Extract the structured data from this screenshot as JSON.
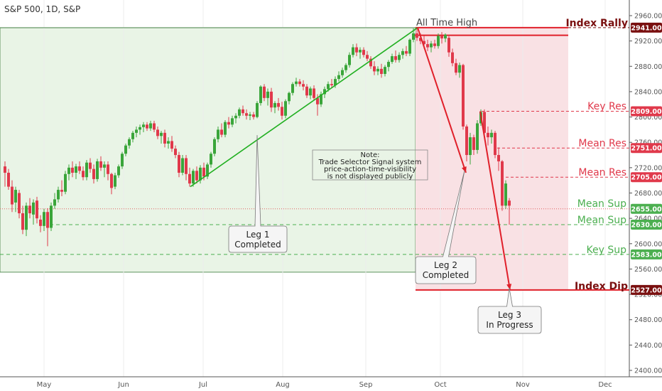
{
  "header": {
    "symbol_line": "S&P 500, 1D, S&P"
  },
  "colors": {
    "up": "#3aa53a",
    "down": "#e0394b",
    "green_line": "#22b022",
    "red_line": "#e0202a",
    "support_text": "#4caf50",
    "resistance_text": "#e0394b",
    "dark_label": "#7a1010",
    "green_zone": "#e9f4e6",
    "red_zone": "#f9e1e4"
  },
  "chart_data": {
    "type": "candlestick",
    "x_axis": {
      "months": [
        "May",
        "Jun",
        "Jul",
        "Aug",
        "Sep",
        "Oct",
        "Nov",
        "Dec"
      ]
    },
    "y_axis": {
      "ylim": [
        2385,
        2975
      ],
      "ticks": [
        2400,
        2440,
        2480,
        2520,
        2560,
        2600,
        2640,
        2680,
        2720,
        2760,
        2800,
        2840,
        2880,
        2920,
        2960
      ],
      "tick_labels": [
        "2400.00",
        "2440.00",
        "2480.00",
        "2520.00",
        "2560.00",
        "2600.00",
        "2640.00",
        "2680.00",
        "2720.00",
        "2760.00",
        "2800.00",
        "2840.00",
        "2880.00",
        "2920.00",
        "2960.00"
      ]
    },
    "levels": [
      {
        "label": "Index Rally",
        "value": 2941,
        "price_label": "2941.00",
        "kind": "dark"
      },
      {
        "label": "Key Res",
        "value": 2809,
        "price_label": "2809.00",
        "kind": "res"
      },
      {
        "label": "Mean Res",
        "value": 2751,
        "price_label": "2751.00",
        "kind": "res"
      },
      {
        "label": "Mean Res",
        "value": 2705,
        "price_label": "2705.00",
        "kind": "res"
      },
      {
        "label": "Mean Sup",
        "value": 2655,
        "price_label": "2655.00",
        "kind": "sup"
      },
      {
        "label": "Mean Sup",
        "value": 2630,
        "price_label": "2630.00",
        "kind": "sup"
      },
      {
        "label": "Key Sup",
        "value": 2583,
        "price_label": "2583.00",
        "kind": "sup"
      },
      {
        "label": "Index Dip",
        "value": 2527,
        "price_label": "2527.00",
        "kind": "dark"
      }
    ],
    "annotations": {
      "all_time_high": "All Time High",
      "note_lines": [
        "Note:",
        "Trade Selector Signal system",
        "price-action-time-visibility",
        "is not displayed publicly"
      ],
      "leg1": [
        "Leg 1",
        "Completed"
      ],
      "leg2": [
        "Leg 2",
        "Completed"
      ],
      "leg3": [
        "Leg 3",
        "In Progress"
      ]
    },
    "candles": [
      {
        "x": 7,
        "o": 2722,
        "h": 2730,
        "l": 2690,
        "c": 2712
      },
      {
        "x": 12,
        "o": 2712,
        "h": 2718,
        "l": 2685,
        "c": 2690
      },
      {
        "x": 17,
        "o": 2690,
        "h": 2700,
        "l": 2650,
        "c": 2662
      },
      {
        "x": 22,
        "o": 2665,
        "h": 2690,
        "l": 2650,
        "c": 2685
      },
      {
        "x": 27,
        "o": 2680,
        "h": 2685,
        "l": 2640,
        "c": 2648
      },
      {
        "x": 32,
        "o": 2648,
        "h": 2660,
        "l": 2615,
        "c": 2622
      },
      {
        "x": 37,
        "o": 2622,
        "h": 2665,
        "l": 2612,
        "c": 2660
      },
      {
        "x": 42,
        "o": 2660,
        "h": 2672,
        "l": 2640,
        "c": 2648
      },
      {
        "x": 47,
        "o": 2646,
        "h": 2670,
        "l": 2630,
        "c": 2665
      },
      {
        "x": 52,
        "o": 2668,
        "h": 2674,
        "l": 2632,
        "c": 2640
      },
      {
        "x": 57,
        "o": 2638,
        "h": 2645,
        "l": 2618,
        "c": 2628
      },
      {
        "x": 62,
        "o": 2628,
        "h": 2655,
        "l": 2620,
        "c": 2650
      },
      {
        "x": 67,
        "o": 2650,
        "h": 2656,
        "l": 2596,
        "c": 2625
      },
      {
        "x": 72,
        "o": 2625,
        "h": 2665,
        "l": 2620,
        "c": 2660
      },
      {
        "x": 77,
        "o": 2660,
        "h": 2680,
        "l": 2655,
        "c": 2670
      },
      {
        "x": 82,
        "o": 2670,
        "h": 2690,
        "l": 2665,
        "c": 2685
      },
      {
        "x": 87,
        "o": 2685,
        "h": 2700,
        "l": 2675,
        "c": 2682
      },
      {
        "x": 92,
        "o": 2682,
        "h": 2715,
        "l": 2678,
        "c": 2710
      },
      {
        "x": 97,
        "o": 2710,
        "h": 2725,
        "l": 2700,
        "c": 2720
      },
      {
        "x": 102,
        "o": 2720,
        "h": 2730,
        "l": 2705,
        "c": 2712
      },
      {
        "x": 107,
        "o": 2712,
        "h": 2726,
        "l": 2702,
        "c": 2722
      },
      {
        "x": 112,
        "o": 2722,
        "h": 2730,
        "l": 2710,
        "c": 2715
      },
      {
        "x": 117,
        "o": 2715,
        "h": 2722,
        "l": 2700,
        "c": 2705
      },
      {
        "x": 122,
        "o": 2705,
        "h": 2732,
        "l": 2700,
        "c": 2728
      },
      {
        "x": 127,
        "o": 2728,
        "h": 2735,
        "l": 2712,
        "c": 2718
      },
      {
        "x": 132,
        "o": 2718,
        "h": 2725,
        "l": 2695,
        "c": 2702
      },
      {
        "x": 137,
        "o": 2702,
        "h": 2734,
        "l": 2698,
        "c": 2730
      },
      {
        "x": 142,
        "o": 2730,
        "h": 2738,
        "l": 2715,
        "c": 2720
      },
      {
        "x": 147,
        "o": 2720,
        "h": 2730,
        "l": 2705,
        "c": 2725
      },
      {
        "x": 152,
        "o": 2725,
        "h": 2730,
        "l": 2700,
        "c": 2710
      },
      {
        "x": 157,
        "o": 2710,
        "h": 2712,
        "l": 2678,
        "c": 2688
      },
      {
        "x": 162,
        "o": 2690,
        "h": 2712,
        "l": 2686,
        "c": 2708
      },
      {
        "x": 167,
        "o": 2708,
        "h": 2725,
        "l": 2704,
        "c": 2722
      },
      {
        "x": 172,
        "o": 2722,
        "h": 2745,
        "l": 2718,
        "c": 2742
      },
      {
        "x": 177,
        "o": 2742,
        "h": 2758,
        "l": 2738,
        "c": 2755
      },
      {
        "x": 182,
        "o": 2755,
        "h": 2768,
        "l": 2750,
        "c": 2765
      },
      {
        "x": 187,
        "o": 2765,
        "h": 2778,
        "l": 2760,
        "c": 2775
      },
      {
        "x": 192,
        "o": 2775,
        "h": 2785,
        "l": 2768,
        "c": 2780
      },
      {
        "x": 197,
        "o": 2780,
        "h": 2788,
        "l": 2772,
        "c": 2784
      },
      {
        "x": 202,
        "o": 2784,
        "h": 2792,
        "l": 2776,
        "c": 2788
      },
      {
        "x": 207,
        "o": 2788,
        "h": 2792,
        "l": 2778,
        "c": 2782
      },
      {
        "x": 212,
        "o": 2782,
        "h": 2794,
        "l": 2778,
        "c": 2790
      },
      {
        "x": 217,
        "o": 2790,
        "h": 2794,
        "l": 2776,
        "c": 2780
      },
      {
        "x": 222,
        "o": 2780,
        "h": 2785,
        "l": 2765,
        "c": 2770
      },
      {
        "x": 227,
        "o": 2770,
        "h": 2778,
        "l": 2758,
        "c": 2775
      },
      {
        "x": 232,
        "o": 2775,
        "h": 2780,
        "l": 2752,
        "c": 2758
      },
      {
        "x": 237,
        "o": 2758,
        "h": 2768,
        "l": 2750,
        "c": 2762
      },
      {
        "x": 242,
        "o": 2762,
        "h": 2770,
        "l": 2745,
        "c": 2750
      },
      {
        "x": 247,
        "o": 2750,
        "h": 2755,
        "l": 2735,
        "c": 2740
      },
      {
        "x": 252,
        "o": 2740,
        "h": 2745,
        "l": 2705,
        "c": 2712
      },
      {
        "x": 257,
        "o": 2712,
        "h": 2740,
        "l": 2708,
        "c": 2735
      },
      {
        "x": 262,
        "o": 2735,
        "h": 2740,
        "l": 2700,
        "c": 2710
      },
      {
        "x": 267,
        "o": 2710,
        "h": 2720,
        "l": 2690,
        "c": 2695
      },
      {
        "x": 272,
        "o": 2695,
        "h": 2718,
        "l": 2690,
        "c": 2715
      },
      {
        "x": 277,
        "o": 2715,
        "h": 2722,
        "l": 2695,
        "c": 2700
      },
      {
        "x": 282,
        "o": 2700,
        "h": 2724,
        "l": 2695,
        "c": 2720
      },
      {
        "x": 287,
        "o": 2720,
        "h": 2728,
        "l": 2700,
        "c": 2706
      },
      {
        "x": 292,
        "o": 2706,
        "h": 2728,
        "l": 2702,
        "c": 2725
      },
      {
        "x": 297,
        "o": 2725,
        "h": 2745,
        "l": 2720,
        "c": 2742
      },
      {
        "x": 302,
        "o": 2742,
        "h": 2768,
        "l": 2738,
        "c": 2765
      },
      {
        "x": 307,
        "o": 2765,
        "h": 2785,
        "l": 2760,
        "c": 2780
      },
      {
        "x": 312,
        "o": 2780,
        "h": 2790,
        "l": 2768,
        "c": 2772
      },
      {
        "x": 317,
        "o": 2772,
        "h": 2795,
        "l": 2768,
        "c": 2792
      },
      {
        "x": 322,
        "o": 2792,
        "h": 2800,
        "l": 2782,
        "c": 2788
      },
      {
        "x": 327,
        "o": 2788,
        "h": 2802,
        "l": 2784,
        "c": 2798
      },
      {
        "x": 332,
        "o": 2798,
        "h": 2806,
        "l": 2790,
        "c": 2802
      },
      {
        "x": 337,
        "o": 2802,
        "h": 2815,
        "l": 2798,
        "c": 2812
      },
      {
        "x": 342,
        "o": 2812,
        "h": 2818,
        "l": 2802,
        "c": 2806
      },
      {
        "x": 347,
        "o": 2806,
        "h": 2812,
        "l": 2796,
        "c": 2802
      },
      {
        "x": 352,
        "o": 2802,
        "h": 2808,
        "l": 2795,
        "c": 2804
      },
      {
        "x": 357,
        "o": 2804,
        "h": 2808,
        "l": 2796,
        "c": 2800
      },
      {
        "x": 362,
        "o": 2800,
        "h": 2825,
        "l": 2798,
        "c": 2822
      },
      {
        "x": 367,
        "o": 2822,
        "h": 2850,
        "l": 2818,
        "c": 2848
      },
      {
        "x": 372,
        "o": 2848,
        "h": 2852,
        "l": 2825,
        "c": 2830
      },
      {
        "x": 377,
        "o": 2830,
        "h": 2845,
        "l": 2818,
        "c": 2840
      },
      {
        "x": 382,
        "o": 2840,
        "h": 2846,
        "l": 2808,
        "c": 2815
      },
      {
        "x": 387,
        "o": 2815,
        "h": 2825,
        "l": 2806,
        "c": 2822
      },
      {
        "x": 392,
        "o": 2822,
        "h": 2830,
        "l": 2810,
        "c": 2816
      },
      {
        "x": 397,
        "o": 2816,
        "h": 2824,
        "l": 2796,
        "c": 2802
      },
      {
        "x": 402,
        "o": 2802,
        "h": 2828,
        "l": 2798,
        "c": 2825
      },
      {
        "x": 407,
        "o": 2825,
        "h": 2840,
        "l": 2820,
        "c": 2838
      },
      {
        "x": 412,
        "o": 2838,
        "h": 2855,
        "l": 2834,
        "c": 2852
      },
      {
        "x": 417,
        "o": 2852,
        "h": 2862,
        "l": 2848,
        "c": 2856
      },
      {
        "x": 422,
        "o": 2856,
        "h": 2860,
        "l": 2848,
        "c": 2852
      },
      {
        "x": 427,
        "o": 2852,
        "h": 2858,
        "l": 2842,
        "c": 2848
      },
      {
        "x": 432,
        "o": 2848,
        "h": 2852,
        "l": 2830,
        "c": 2834
      },
      {
        "x": 437,
        "o": 2834,
        "h": 2848,
        "l": 2828,
        "c": 2845
      },
      {
        "x": 442,
        "o": 2845,
        "h": 2850,
        "l": 2826,
        "c": 2830
      },
      {
        "x": 447,
        "o": 2830,
        "h": 2836,
        "l": 2802,
        "c": 2820
      },
      {
        "x": 452,
        "o": 2820,
        "h": 2840,
        "l": 2816,
        "c": 2836
      },
      {
        "x": 457,
        "o": 2836,
        "h": 2848,
        "l": 2830,
        "c": 2844
      },
      {
        "x": 462,
        "o": 2844,
        "h": 2856,
        "l": 2840,
        "c": 2852
      },
      {
        "x": 467,
        "o": 2852,
        "h": 2860,
        "l": 2846,
        "c": 2850
      },
      {
        "x": 472,
        "o": 2850,
        "h": 2864,
        "l": 2846,
        "c": 2860
      },
      {
        "x": 477,
        "o": 2860,
        "h": 2872,
        "l": 2856,
        "c": 2866
      },
      {
        "x": 482,
        "o": 2866,
        "h": 2878,
        "l": 2862,
        "c": 2874
      },
      {
        "x": 487,
        "o": 2874,
        "h": 2885,
        "l": 2870,
        "c": 2882
      },
      {
        "x": 492,
        "o": 2882,
        "h": 2902,
        "l": 2878,
        "c": 2898
      },
      {
        "x": 497,
        "o": 2898,
        "h": 2915,
        "l": 2894,
        "c": 2910
      },
      {
        "x": 502,
        "o": 2910,
        "h": 2916,
        "l": 2896,
        "c": 2902
      },
      {
        "x": 507,
        "o": 2902,
        "h": 2910,
        "l": 2892,
        "c": 2906
      },
      {
        "x": 512,
        "o": 2906,
        "h": 2910,
        "l": 2894,
        "c": 2898
      },
      {
        "x": 517,
        "o": 2898,
        "h": 2904,
        "l": 2888,
        "c": 2892
      },
      {
        "x": 522,
        "o": 2892,
        "h": 2896,
        "l": 2876,
        "c": 2880
      },
      {
        "x": 527,
        "o": 2880,
        "h": 2888,
        "l": 2866,
        "c": 2872
      },
      {
        "x": 532,
        "o": 2872,
        "h": 2880,
        "l": 2866,
        "c": 2876
      },
      {
        "x": 537,
        "o": 2876,
        "h": 2884,
        "l": 2862,
        "c": 2868
      },
      {
        "x": 542,
        "o": 2868,
        "h": 2882,
        "l": 2864,
        "c": 2879
      },
      {
        "x": 547,
        "o": 2879,
        "h": 2890,
        "l": 2872,
        "c": 2887
      },
      {
        "x": 552,
        "o": 2887,
        "h": 2900,
        "l": 2884,
        "c": 2896
      },
      {
        "x": 557,
        "o": 2896,
        "h": 2905,
        "l": 2886,
        "c": 2890
      },
      {
        "x": 562,
        "o": 2890,
        "h": 2902,
        "l": 2886,
        "c": 2898
      },
      {
        "x": 567,
        "o": 2898,
        "h": 2908,
        "l": 2892,
        "c": 2904
      },
      {
        "x": 572,
        "o": 2904,
        "h": 2912,
        "l": 2896,
        "c": 2900
      },
      {
        "x": 577,
        "o": 2900,
        "h": 2924,
        "l": 2896,
        "c": 2922
      },
      {
        "x": 582,
        "o": 2922,
        "h": 2940,
        "l": 2918,
        "c": 2932
      },
      {
        "x": 587,
        "o": 2932,
        "h": 2941,
        "l": 2920,
        "c": 2925
      },
      {
        "x": 592,
        "o": 2925,
        "h": 2932,
        "l": 2915,
        "c": 2920
      },
      {
        "x": 597,
        "o": 2920,
        "h": 2928,
        "l": 2908,
        "c": 2915
      },
      {
        "x": 602,
        "o": 2915,
        "h": 2922,
        "l": 2904,
        "c": 2910
      },
      {
        "x": 607,
        "o": 2910,
        "h": 2920,
        "l": 2902,
        "c": 2916
      },
      {
        "x": 612,
        "o": 2916,
        "h": 2922,
        "l": 2908,
        "c": 2912
      },
      {
        "x": 617,
        "o": 2912,
        "h": 2932,
        "l": 2908,
        "c": 2928
      },
      {
        "x": 622,
        "o": 2928,
        "h": 2934,
        "l": 2916,
        "c": 2924
      },
      {
        "x": 627,
        "o": 2924,
        "h": 2932,
        "l": 2918,
        "c": 2930
      },
      {
        "x": 632,
        "o": 2925,
        "h": 2930,
        "l": 2895,
        "c": 2902
      },
      {
        "x": 637,
        "o": 2902,
        "h": 2908,
        "l": 2880,
        "c": 2885
      },
      {
        "x": 642,
        "o": 2885,
        "h": 2892,
        "l": 2866,
        "c": 2870
      },
      {
        "x": 647,
        "o": 2870,
        "h": 2886,
        "l": 2862,
        "c": 2882
      },
      {
        "x": 652,
        "o": 2882,
        "h": 2884,
        "l": 2780,
        "c": 2785
      },
      {
        "x": 657,
        "o": 2785,
        "h": 2788,
        "l": 2730,
        "c": 2740
      },
      {
        "x": 662,
        "o": 2740,
        "h": 2775,
        "l": 2725,
        "c": 2768
      },
      {
        "x": 667,
        "o": 2768,
        "h": 2772,
        "l": 2740,
        "c": 2748
      },
      {
        "x": 672,
        "o": 2748,
        "h": 2795,
        "l": 2742,
        "c": 2790
      },
      {
        "x": 677,
        "o": 2790,
        "h": 2812,
        "l": 2786,
        "c": 2808
      },
      {
        "x": 682,
        "o": 2808,
        "h": 2812,
        "l": 2768,
        "c": 2775
      },
      {
        "x": 687,
        "o": 2775,
        "h": 2785,
        "l": 2755,
        "c": 2768
      },
      {
        "x": 692,
        "o": 2768,
        "h": 2780,
        "l": 2758,
        "c": 2775
      },
      {
        "x": 697,
        "o": 2775,
        "h": 2778,
        "l": 2735,
        "c": 2740
      },
      {
        "x": 702,
        "o": 2740,
        "h": 2752,
        "l": 2715,
        "c": 2730
      },
      {
        "x": 707,
        "o": 2730,
        "h": 2732,
        "l": 2652,
        "c": 2660
      },
      {
        "x": 712,
        "o": 2660,
        "h": 2700,
        "l": 2655,
        "c": 2695
      },
      {
        "x": 717,
        "o": 2668,
        "h": 2672,
        "l": 2630,
        "c": 2660
      }
    ]
  }
}
